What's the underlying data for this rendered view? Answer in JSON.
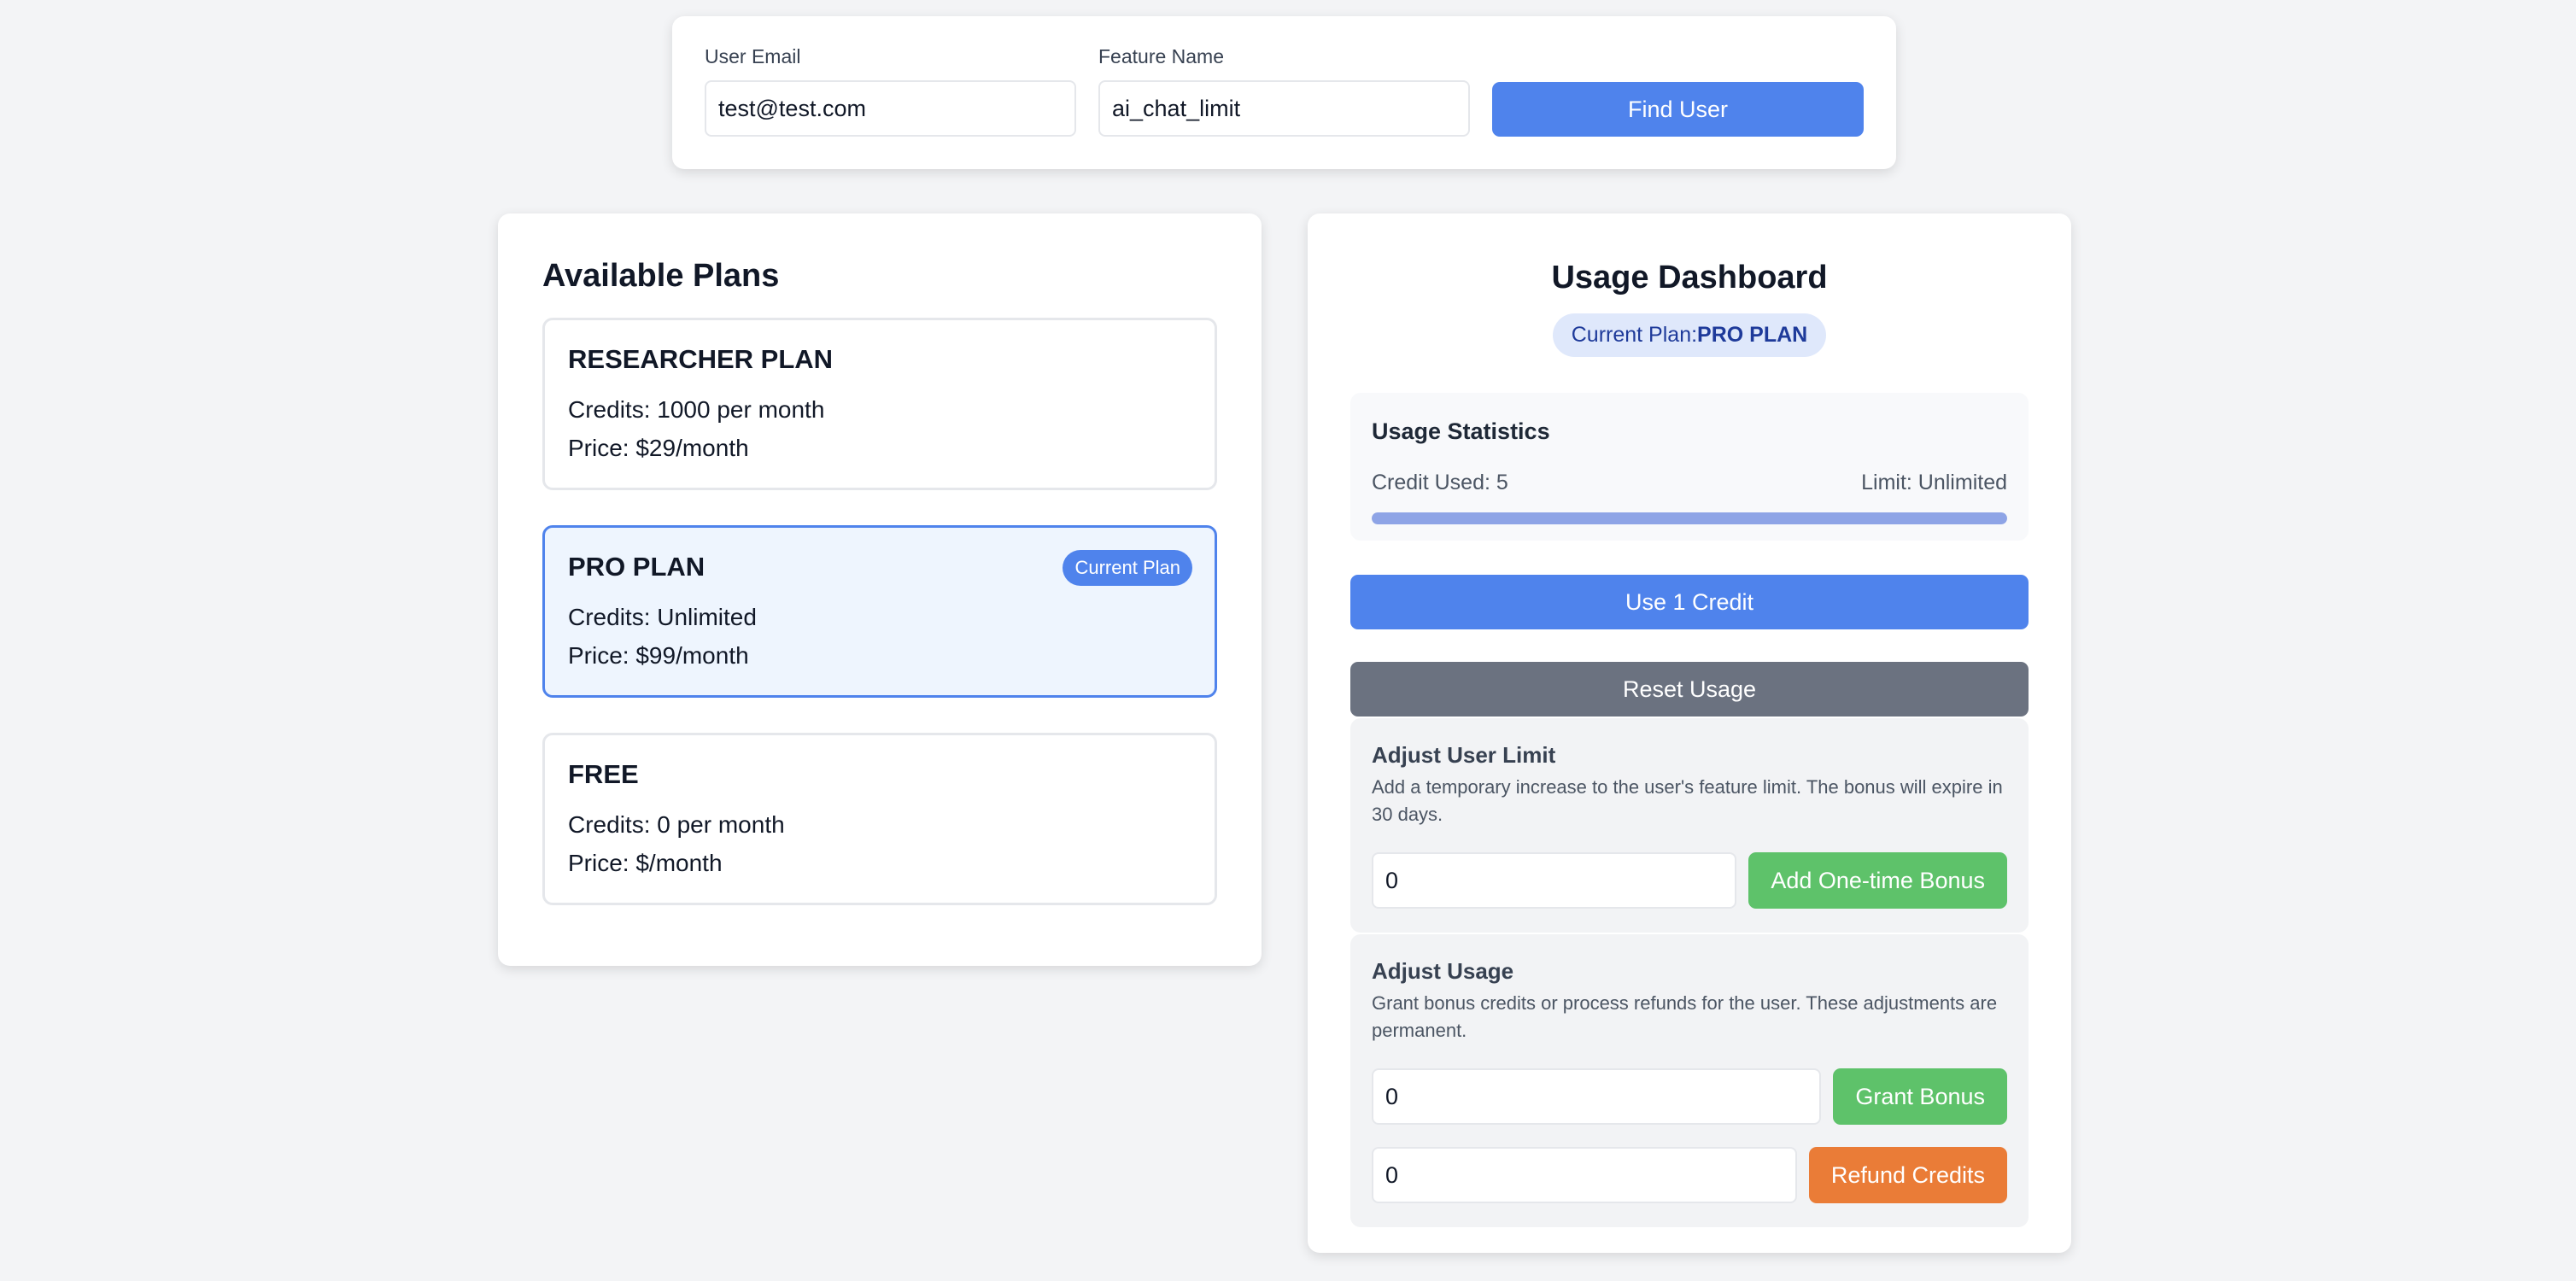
{
  "search": {
    "email_label": "User Email",
    "email_value": "test@test.com",
    "feature_label": "Feature Name",
    "feature_value": "ai_chat_limit",
    "find_label": "Find User"
  },
  "plans": {
    "title": "Available Plans",
    "items": [
      {
        "name": "RESEARCHER PLAN",
        "credits": "Credits: 1000 per month",
        "price": "Price: $29/month"
      },
      {
        "name": "PRO PLAN",
        "credits": "Credits: Unlimited",
        "price": "Price: $99/month",
        "badge": "Current Plan"
      },
      {
        "name": "FREE",
        "credits": "Credits: 0 per month",
        "price": "Price: $/month"
      }
    ]
  },
  "dashboard": {
    "title": "Usage Dashboard",
    "current_plan_label": "Current Plan:",
    "current_plan_value": "PRO PLAN",
    "stats": {
      "title": "Usage Statistics",
      "used": "Credit Used: 5",
      "limit": "Limit: Unlimited",
      "progress_percent": 100
    },
    "use_label": "Use 1 Credit",
    "reset_label": "Reset Usage",
    "limit_section": {
      "title": "Adjust User Limit",
      "description": "Add a temporary increase to the user's feature limit. The bonus will expire in 30 days.",
      "value": "0",
      "button": "Add One-time Bonus"
    },
    "usage_section": {
      "title": "Adjust Usage",
      "description": "Grant bonus credits or process refunds for the user. These adjustments are permanent.",
      "bonus_value": "0",
      "bonus_button": "Grant Bonus",
      "refund_value": "0",
      "refund_button": "Refund Credits"
    }
  },
  "colors": {
    "primary": "#4f83ec",
    "secondary": "#6b7280",
    "success": "#5ec26a",
    "warning": "#ea7c37"
  }
}
